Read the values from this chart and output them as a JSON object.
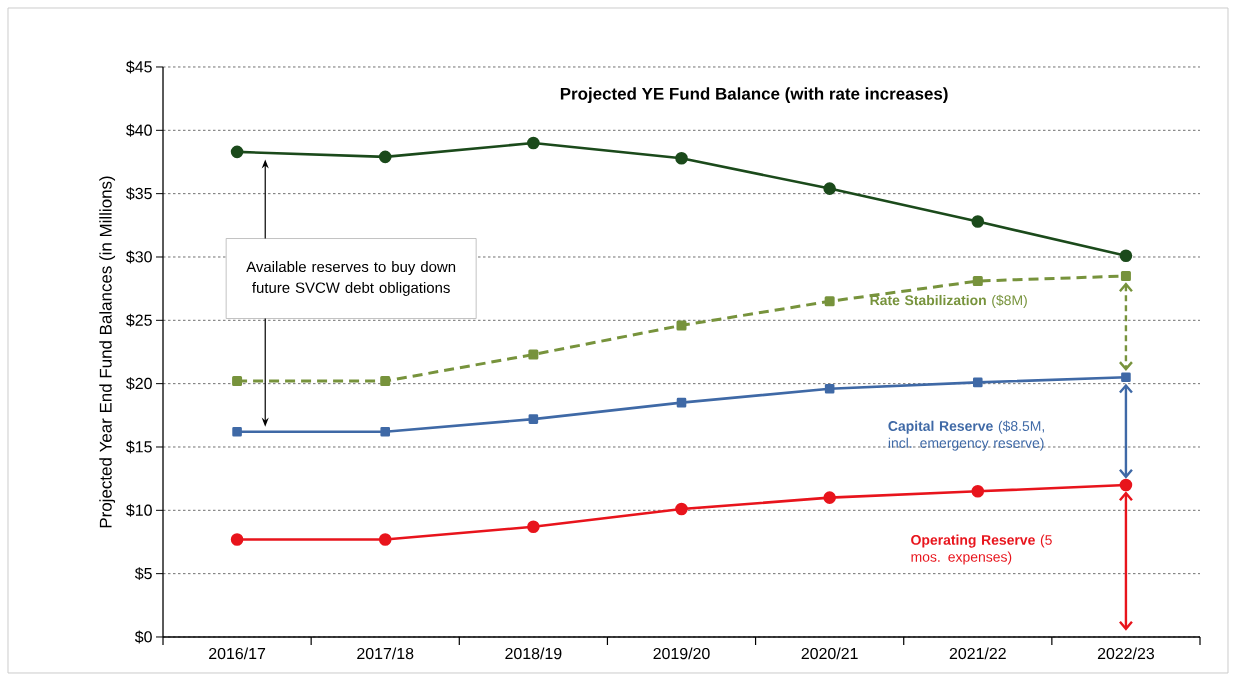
{
  "chart_data": {
    "type": "line",
    "title": "Projected YE Fund Balance (with rate increases)",
    "ylabel": "Projected Year End Fund Balances (in Millions)",
    "categories": [
      "2016/17",
      "2017/18",
      "2018/19",
      "2019/20",
      "2020/21",
      "2021/22",
      "2022/23"
    ],
    "series": [
      {
        "color": "#1b4a1b",
        "marker": "circle",
        "line_style": "solid",
        "values": [
          38.3,
          37.9,
          39.0,
          37.8,
          35.4,
          32.8,
          30.1
        ]
      },
      {
        "name": "**Rate Stabilization** ($8M)",
        "color": "#77933c",
        "marker": "square",
        "line_style": "dashed",
        "values": [
          20.2,
          20.2,
          22.3,
          24.6,
          26.5,
          28.1,
          28.5
        ]
      },
      {
        "name": "**Capital Reserve** ($8.5M, incl. emergency reserve)",
        "color": "#3f69a6",
        "marker": "square",
        "line_style": "solid",
        "values": [
          16.2,
          16.2,
          17.2,
          18.5,
          19.6,
          20.1,
          20.5
        ]
      },
      {
        "name": "**Operating Reserve** (5 mos. expenses)",
        "color": "#e8141c",
        "marker": "circle",
        "line_style": "solid",
        "values": [
          7.7,
          7.7,
          8.7,
          10.1,
          11.0,
          11.5,
          12.0
        ]
      }
    ],
    "annotations": [
      "Available reserves to buy down future SVCW debt obligations"
    ],
    "ylim": [
      0,
      45
    ],
    "yticks": [
      {
        "value": 0,
        "label": "$0"
      },
      {
        "value": 5,
        "label": "$5"
      },
      {
        "value": 10,
        "label": "$10"
      },
      {
        "value": 15,
        "label": "$15"
      },
      {
        "value": 20,
        "label": "$20"
      },
      {
        "value": 25,
        "label": "$25"
      },
      {
        "value": 30,
        "label": "$30"
      },
      {
        "value": 35,
        "label": "$35"
      },
      {
        "value": 40,
        "label": "$40"
      },
      {
        "value": 45,
        "label": "$45"
      }
    ],
    "grid": "y"
  }
}
